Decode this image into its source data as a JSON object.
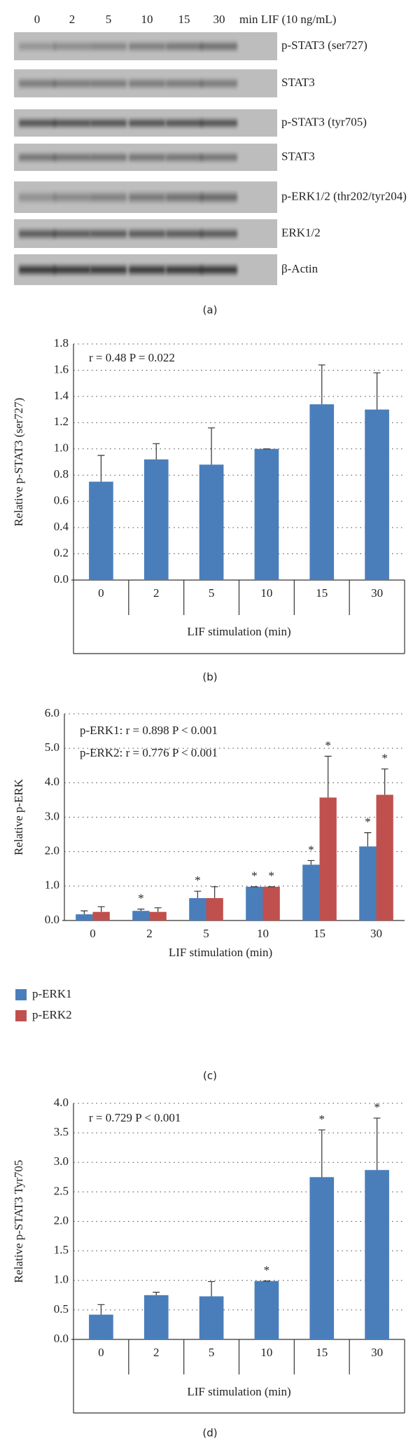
{
  "blot": {
    "lanes": [
      "0",
      "2",
      "5",
      "10",
      "15",
      "30"
    ],
    "unit": "min LIF (10 ng/mL)",
    "rows": [
      "p-STAT3 (ser727)",
      "STAT3",
      "p-STAT3 (tyr705)",
      "STAT3",
      "p-ERK1/2 (thr202/tyr204)",
      "ERK1/2",
      "β-Actin"
    ],
    "caption": "(a)"
  },
  "chart_data": [
    {
      "type": "bar",
      "caption": "(b)",
      "x_label": "LIF stimulation (min)",
      "y_label": "Relative p-STAT3 (ser727)",
      "annotations": [
        "r = 0.48    P = 0.022"
      ],
      "categories": [
        "0",
        "2",
        "5",
        "10",
        "15",
        "30"
      ],
      "series": [
        {
          "color": "#4a7ebb",
          "values": [
            0.75,
            0.92,
            0.88,
            1.0,
            1.34,
            1.3
          ],
          "errors": [
            0.2,
            0.12,
            0.28,
            0.0,
            0.3,
            0.28
          ]
        }
      ],
      "ylim": [
        0,
        1.8
      ],
      "yticks": [
        {
          "value": 0,
          "label": "0.0"
        },
        0.2,
        0.4,
        0.6,
        0.8,
        {
          "value": 1,
          "label": "1.0"
        },
        1.2,
        1.4,
        1.6,
        1.8
      ],
      "grid": true
    },
    {
      "type": "bar",
      "caption": "(c)",
      "x_label": "LIF stimulation (min)",
      "y_label": "Relative p-ERK",
      "annotations": [
        "p-ERK1: r = 0.898   P < 0.001",
        "p-ERK2: r = 0.776   P < 0.001"
      ],
      "categories": [
        "0",
        "2",
        "5",
        "10",
        "15",
        "30"
      ],
      "series": [
        {
          "name": "p-ERK1",
          "color": "#4a7ebb",
          "values": [
            0.18,
            0.28,
            0.65,
            0.98,
            1.62,
            2.15
          ],
          "errors": [
            0.1,
            0.05,
            0.2,
            0.0,
            0.12,
            0.4
          ],
          "significance": [
            null,
            "*",
            "*",
            "*",
            "*",
            "*"
          ]
        },
        {
          "name": "p-ERK2",
          "color": "#c0504d",
          "values": [
            0.25,
            0.25,
            0.65,
            0.98,
            3.57,
            3.65
          ],
          "errors": [
            0.15,
            0.12,
            0.33,
            0.0,
            1.2,
            0.75
          ],
          "significance": [
            null,
            null,
            null,
            "*",
            "*",
            "*"
          ]
        }
      ],
      "ylim": [
        0,
        6
      ],
      "yticks": [
        {
          "value": 0,
          "label": "0.0"
        },
        {
          "value": 1,
          "label": "1.0"
        },
        {
          "value": 2,
          "label": "2.0"
        },
        {
          "value": 3,
          "label": "3.0"
        },
        {
          "value": 4,
          "label": "4.0"
        },
        {
          "value": 5,
          "label": "5.0"
        },
        {
          "value": 6,
          "label": "6.0"
        }
      ],
      "grid": true,
      "legend": "bottom-left"
    },
    {
      "type": "bar",
      "caption": "(d)",
      "x_label": "LIF stimulation (min)",
      "y_label": "Relative p-STAT3 Tyr705",
      "annotations": [
        "r = 0.729   P < 0.001"
      ],
      "categories": [
        "0",
        "2",
        "5",
        "10",
        "15",
        "30"
      ],
      "series": [
        {
          "color": "#4a7ebb",
          "values": [
            0.42,
            0.75,
            0.73,
            0.99,
            2.75,
            2.87
          ],
          "errors": [
            0.17,
            0.05,
            0.25,
            0.0,
            0.8,
            0.88
          ],
          "significance": [
            null,
            null,
            null,
            "*",
            "*",
            "*"
          ]
        }
      ],
      "ylim": [
        0,
        4
      ],
      "yticks": [
        {
          "value": 0,
          "label": "0.0"
        },
        0.5,
        {
          "value": 1,
          "label": "1.0"
        },
        1.5,
        {
          "value": 2,
          "label": "2.0"
        },
        2.5,
        {
          "value": 3,
          "label": "3.0"
        },
        3.5,
        {
          "value": 4,
          "label": "4.0"
        }
      ],
      "grid": true
    }
  ]
}
